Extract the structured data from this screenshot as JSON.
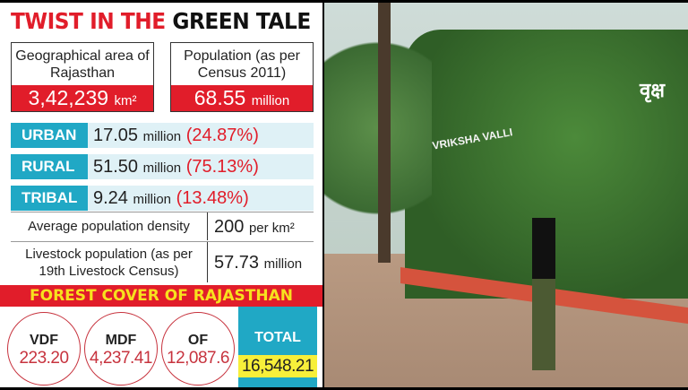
{
  "title": {
    "part1": "TWIST IN THE",
    "part2": "GREEN TALE"
  },
  "stats": [
    {
      "label": "Geographical area of Rajasthan",
      "value": "3,42,239",
      "unit": "km²"
    },
    {
      "label": "Population (as per Census 2011)",
      "value": "68.55",
      "unit": "million"
    }
  ],
  "population_breakdown": [
    {
      "label": "URBAN",
      "value": "17.05",
      "unit": "million",
      "percent": "(24.87%)"
    },
    {
      "label": "RURAL",
      "value": "51.50",
      "unit": "million",
      "percent": "(75.13%)"
    },
    {
      "label": "TRIBAL",
      "value": "9.24",
      "unit": "million",
      "percent": "(13.48%)"
    }
  ],
  "table": [
    {
      "label": "Average population density",
      "value": "200",
      "unit": "per km²"
    },
    {
      "label": "Livestock population (as per 19th Livestock Census)",
      "value": "57.73",
      "unit": "million"
    }
  ],
  "forest": {
    "heading": "FOREST COVER OF RAJASTHAN",
    "items": [
      {
        "label": "VDF",
        "value": "223.20"
      },
      {
        "label": "MDF",
        "value": "4,237.41"
      },
      {
        "label": "OF",
        "value": "12,087.6"
      }
    ],
    "total": {
      "label": "TOTAL",
      "value": "16,548.21"
    }
  },
  "photo": {
    "sign_hindi": "वृक्ष",
    "sign_english": "VRIKSHA VALLI"
  },
  "colors": {
    "red": "#e11d2a",
    "teal": "#20a8c5",
    "yellow": "#f7ef3a",
    "forest_heading_text": "#f7e11e"
  }
}
